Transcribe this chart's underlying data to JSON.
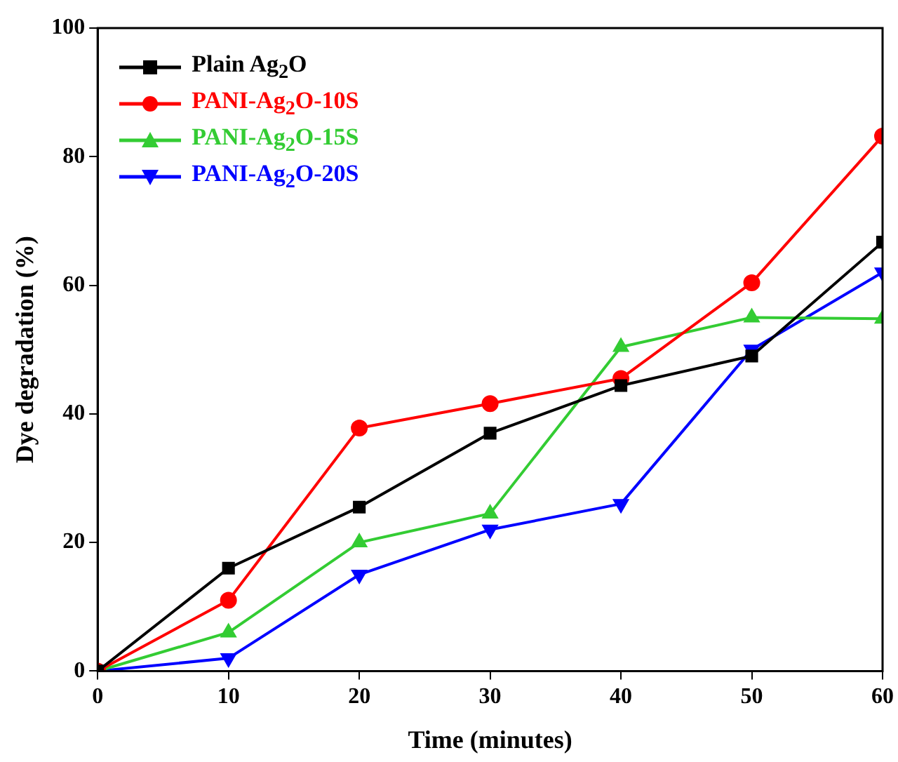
{
  "chart_data": {
    "type": "line",
    "xlabel": "Time (minutes)",
    "ylabel": "Dye degradation (%)",
    "x": [
      0,
      10,
      20,
      30,
      40,
      50,
      60
    ],
    "series": [
      {
        "name": "Plain Ag$_{2}$O",
        "color": "#000000",
        "marker": "square",
        "values": [
          0,
          16,
          25.5,
          37,
          44.4,
          49,
          66.7
        ]
      },
      {
        "name": "PANI-Ag$_{2}$O-10S",
        "color": "#ff0000",
        "marker": "circle",
        "values": [
          0,
          11,
          37.8,
          41.6,
          45.5,
          60.4,
          83.2
        ]
      },
      {
        "name": "PANI-Ag$_{2}$O-15S",
        "color": "#33cc33",
        "marker": "triangle",
        "values": [
          0,
          6,
          20,
          24.5,
          50.4,
          55,
          54.8
        ]
      },
      {
        "name": "PANI-Ag$_{2}$O-20S",
        "color": "#0000ff",
        "marker": "triangle-down",
        "values": [
          0,
          2,
          15,
          22,
          26,
          50,
          62
        ]
      }
    ],
    "xlim": [
      0,
      60
    ],
    "xticks": [
      0,
      10,
      20,
      30,
      40,
      50,
      60
    ],
    "ylim": [
      0,
      100
    ],
    "yticks": [
      0,
      20,
      40,
      60,
      80,
      100
    ],
    "grid": false,
    "legend": "top left",
    "line_style": "solid"
  }
}
